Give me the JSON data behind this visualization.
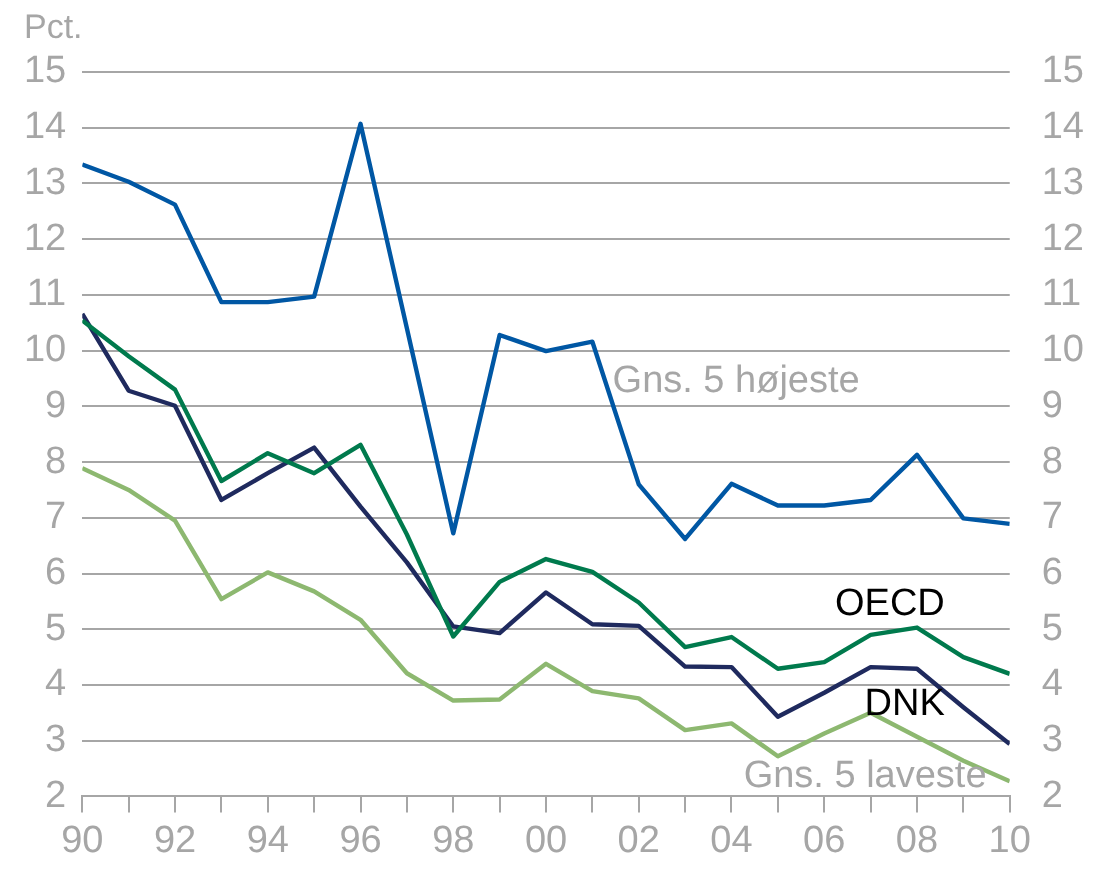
{
  "chart_data": {
    "type": "line",
    "ylabel": "Pct.",
    "x": [
      1990,
      1991,
      1992,
      1993,
      1994,
      1995,
      1996,
      1997,
      1998,
      1999,
      2000,
      2001,
      2002,
      2003,
      2004,
      2005,
      2006,
      2007,
      2008,
      2009,
      2010
    ],
    "series": [
      {
        "name": "Gns. 5 højeste",
        "color": "#0057a4",
        "values": [
          13.34,
          13.03,
          12.62,
          10.87,
          10.87,
          10.97,
          14.07,
          10.4,
          6.72,
          10.28,
          9.99,
          10.16,
          7.6,
          6.62,
          7.61,
          7.22,
          7.22,
          7.32,
          8.13,
          6.99,
          6.89
        ]
      },
      {
        "name": "OECD",
        "color": "#007a4d",
        "values": [
          10.54,
          9.9,
          9.3,
          7.66,
          8.16,
          7.8,
          8.31,
          6.7,
          4.87,
          5.85,
          6.26,
          6.03,
          5.48,
          4.68,
          4.86,
          4.29,
          4.41,
          4.9,
          5.03,
          4.5,
          4.2
        ]
      },
      {
        "name": "DNK",
        "color": "#1f2a5e",
        "values": [
          10.66,
          9.28,
          9.01,
          7.32,
          7.8,
          8.26,
          7.2,
          6.2,
          5.05,
          4.93,
          5.66,
          5.09,
          5.06,
          4.33,
          4.32,
          3.43,
          3.86,
          4.32,
          4.29,
          3.6,
          2.94
        ]
      },
      {
        "name": "Gns. 5 laveste",
        "color": "#8db870",
        "values": [
          7.89,
          7.5,
          6.95,
          5.54,
          6.02,
          5.68,
          5.17,
          4.21,
          3.72,
          3.74,
          4.38,
          3.89,
          3.76,
          3.19,
          3.31,
          2.72,
          3.13,
          3.5,
          3.07,
          2.64,
          2.27
        ]
      }
    ],
    "xlim": [
      1990,
      2010
    ],
    "xticks": [
      {
        "value": 1990,
        "label": "90"
      },
      {
        "value": 1991,
        "label": null
      },
      {
        "value": 1992,
        "label": "92"
      },
      {
        "value": 1993,
        "label": null
      },
      {
        "value": 1994,
        "label": "94"
      },
      {
        "value": 1995,
        "label": null
      },
      {
        "value": 1996,
        "label": "96"
      },
      {
        "value": 1997,
        "label": null
      },
      {
        "value": 1998,
        "label": "98"
      },
      {
        "value": 1999,
        "label": null
      },
      {
        "value": 2000,
        "label": "00"
      },
      {
        "value": 2001,
        "label": null
      },
      {
        "value": 2002,
        "label": "02"
      },
      {
        "value": 2003,
        "label": null
      },
      {
        "value": 2004,
        "label": "04"
      },
      {
        "value": 2005,
        "label": null
      },
      {
        "value": 2006,
        "label": "06"
      },
      {
        "value": 2007,
        "label": null
      },
      {
        "value": 2008,
        "label": "08"
      },
      {
        "value": 2009,
        "label": null
      },
      {
        "value": 2010,
        "label": "10"
      }
    ],
    "ylim": [
      2,
      15
    ],
    "yticks": [
      2,
      3,
      4,
      5,
      6,
      7,
      8,
      9,
      10,
      11,
      12,
      13,
      14,
      15
    ],
    "y2lim": [
      2,
      15
    ],
    "y2ticks": [
      2,
      3,
      4,
      5,
      6,
      7,
      8,
      9,
      10,
      11,
      12,
      13,
      14,
      15
    ],
    "grid": "y",
    "legend": false,
    "marker": "none",
    "line_style": "solid"
  }
}
